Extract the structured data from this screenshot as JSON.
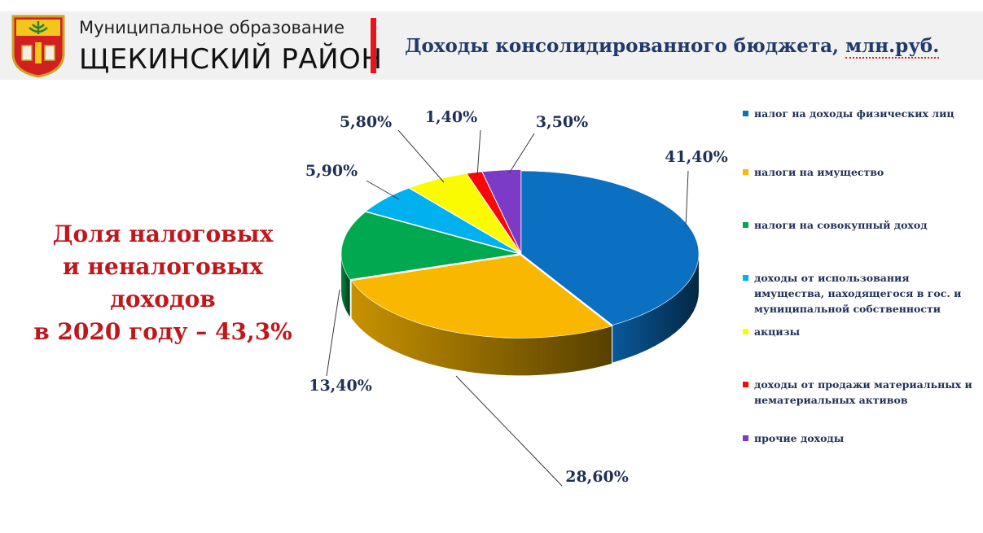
{
  "header": {
    "subtitle": "Муниципальное образование",
    "title": "ЩЕКИНСКИЙ РАЙОН",
    "slide_title_main": "Доходы консолидированного бюджета, ",
    "slide_title_underlined": "млн.руб."
  },
  "side_note": {
    "lines": [
      "Доля налоговых",
      "и неналоговых",
      "доходов",
      "в 2020 году – 43,3%"
    ]
  },
  "chart_data": {
    "type": "pie",
    "style": "3d-exploded",
    "legend_position": "right",
    "categories": [
      "налог на доходы физических лиц",
      "налоги на имущество",
      "налоги на совокупный доход",
      "доходы от использования имущества, находящегося в гос. и муниципальной собственности",
      "акцизы",
      "доходы от продажи материальных и нематериальных активов",
      "прочие доходы"
    ],
    "values": [
      41.4,
      28.6,
      13.4,
      5.9,
      5.8,
      1.4,
      3.5
    ],
    "labels": [
      "41,40%",
      "28,60%",
      "13,40%",
      "5,90%",
      "5,80%",
      "1,40%",
      "3,50%"
    ],
    "colors": [
      "#0b6fc2",
      "#f9b700",
      "#00a84f",
      "#00b0ef",
      "#fbfb00",
      "#f80808",
      "#7c3bc6"
    ]
  }
}
